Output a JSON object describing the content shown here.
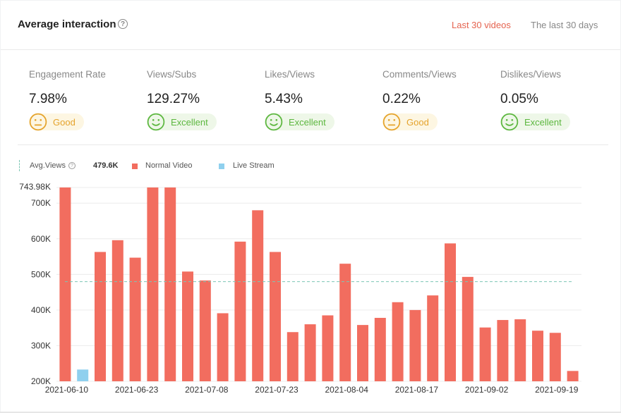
{
  "header": {
    "title": "Average interaction",
    "help_icon": "?",
    "tabs": [
      {
        "label": "Last 30 videos",
        "active": true
      },
      {
        "label": "The last 30 days",
        "active": false
      }
    ]
  },
  "metrics": [
    {
      "label": "Engagement Rate",
      "value": "7.98%",
      "rating": "Good",
      "rating_icon": "neutral-face-icon"
    },
    {
      "label": "Views/Subs",
      "value": "129.27%",
      "rating": "Excellent",
      "rating_icon": "smile-face-icon"
    },
    {
      "label": "Likes/Views",
      "value": "5.43%",
      "rating": "Excellent",
      "rating_icon": "smile-face-icon"
    },
    {
      "label": "Comments/Views",
      "value": "0.22%",
      "rating": "Good",
      "rating_icon": "neutral-face-icon"
    },
    {
      "label": "Dislikes/Views",
      "value": "0.05%",
      "rating": "Excellent",
      "rating_icon": "smile-face-icon"
    }
  ],
  "legend": {
    "avg_label": "Avg.Views",
    "avg_help": "?",
    "avg_value": "479.6K",
    "normal_label": "Normal Video",
    "live_label": "Live Stream"
  },
  "colors": {
    "normal": "#f26d5f",
    "live": "#8fd0ee",
    "avg_line": "#7cc6b4",
    "good": "#e5a32b",
    "excellent": "#5cb73f",
    "accent": "#e5634f"
  },
  "chart_data": {
    "type": "bar",
    "ylim": [
      200000,
      743980
    ],
    "yticks": [
      200000,
      300000,
      400000,
      500000,
      600000,
      700000
    ],
    "ytick_labels": [
      "200K",
      "300K",
      "400K",
      "500K",
      "600K",
      "700K"
    ],
    "max_label": "743.98K",
    "average": 479600,
    "xtick_labels": [
      "2021-06-10",
      "2021-06-23",
      "2021-07-08",
      "2021-07-23",
      "2021-08-04",
      "2021-08-17",
      "2021-09-02",
      "2021-09-19"
    ],
    "series": [
      {
        "name": "Normal Video",
        "values": [
          743980,
          null,
          563000,
          596000,
          547000,
          743980,
          743980,
          508000,
          483000,
          391000,
          592000,
          680000,
          563000,
          338000,
          360000,
          385000,
          530000,
          358000,
          378000,
          422000,
          400000,
          441000,
          587000,
          493000,
          351000,
          372000,
          374000,
          342000,
          336000,
          229000
        ]
      },
      {
        "name": "Live Stream",
        "values": [
          null,
          233000,
          null,
          null,
          null,
          null,
          null,
          null,
          null,
          null,
          null,
          null,
          null,
          null,
          null,
          null,
          null,
          null,
          null,
          null,
          null,
          null,
          null,
          null,
          null,
          null,
          null,
          null,
          null,
          null
        ]
      }
    ]
  }
}
